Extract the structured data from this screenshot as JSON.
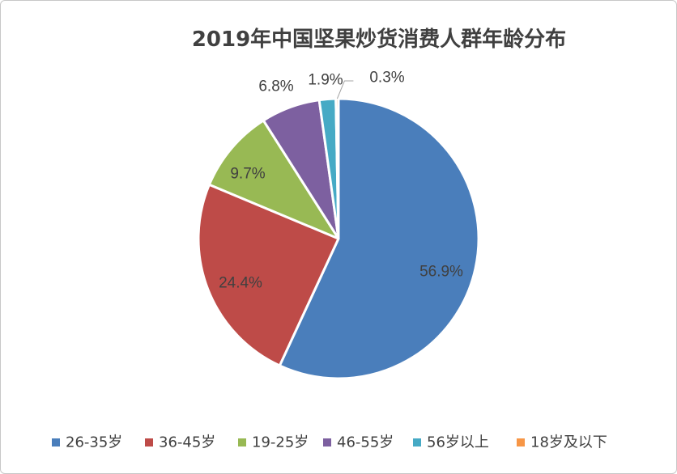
{
  "chart_data": {
    "type": "pie",
    "title": "2019年中国坚果炒货消费人群年龄分布",
    "legend_position": "bottom",
    "slices": [
      {
        "label": "26-35岁",
        "value": 56.9,
        "value_label": "56.9%",
        "color": "#4a7ebb"
      },
      {
        "label": "36-45岁",
        "value": 24.4,
        "value_label": "24.4%",
        "color": "#be4b48"
      },
      {
        "label": "19-25岁",
        "value": 9.7,
        "value_label": "9.7%",
        "color": "#98b954"
      },
      {
        "label": "46-55岁",
        "value": 6.8,
        "value_label": "6.8%",
        "color": "#7d60a0"
      },
      {
        "label": "56岁以上",
        "value": 1.9,
        "value_label": "1.9%",
        "color": "#46aac5"
      },
      {
        "label": "18岁及以下",
        "value": 0.3,
        "value_label": "0.3%",
        "color": "#f79646"
      }
    ]
  }
}
